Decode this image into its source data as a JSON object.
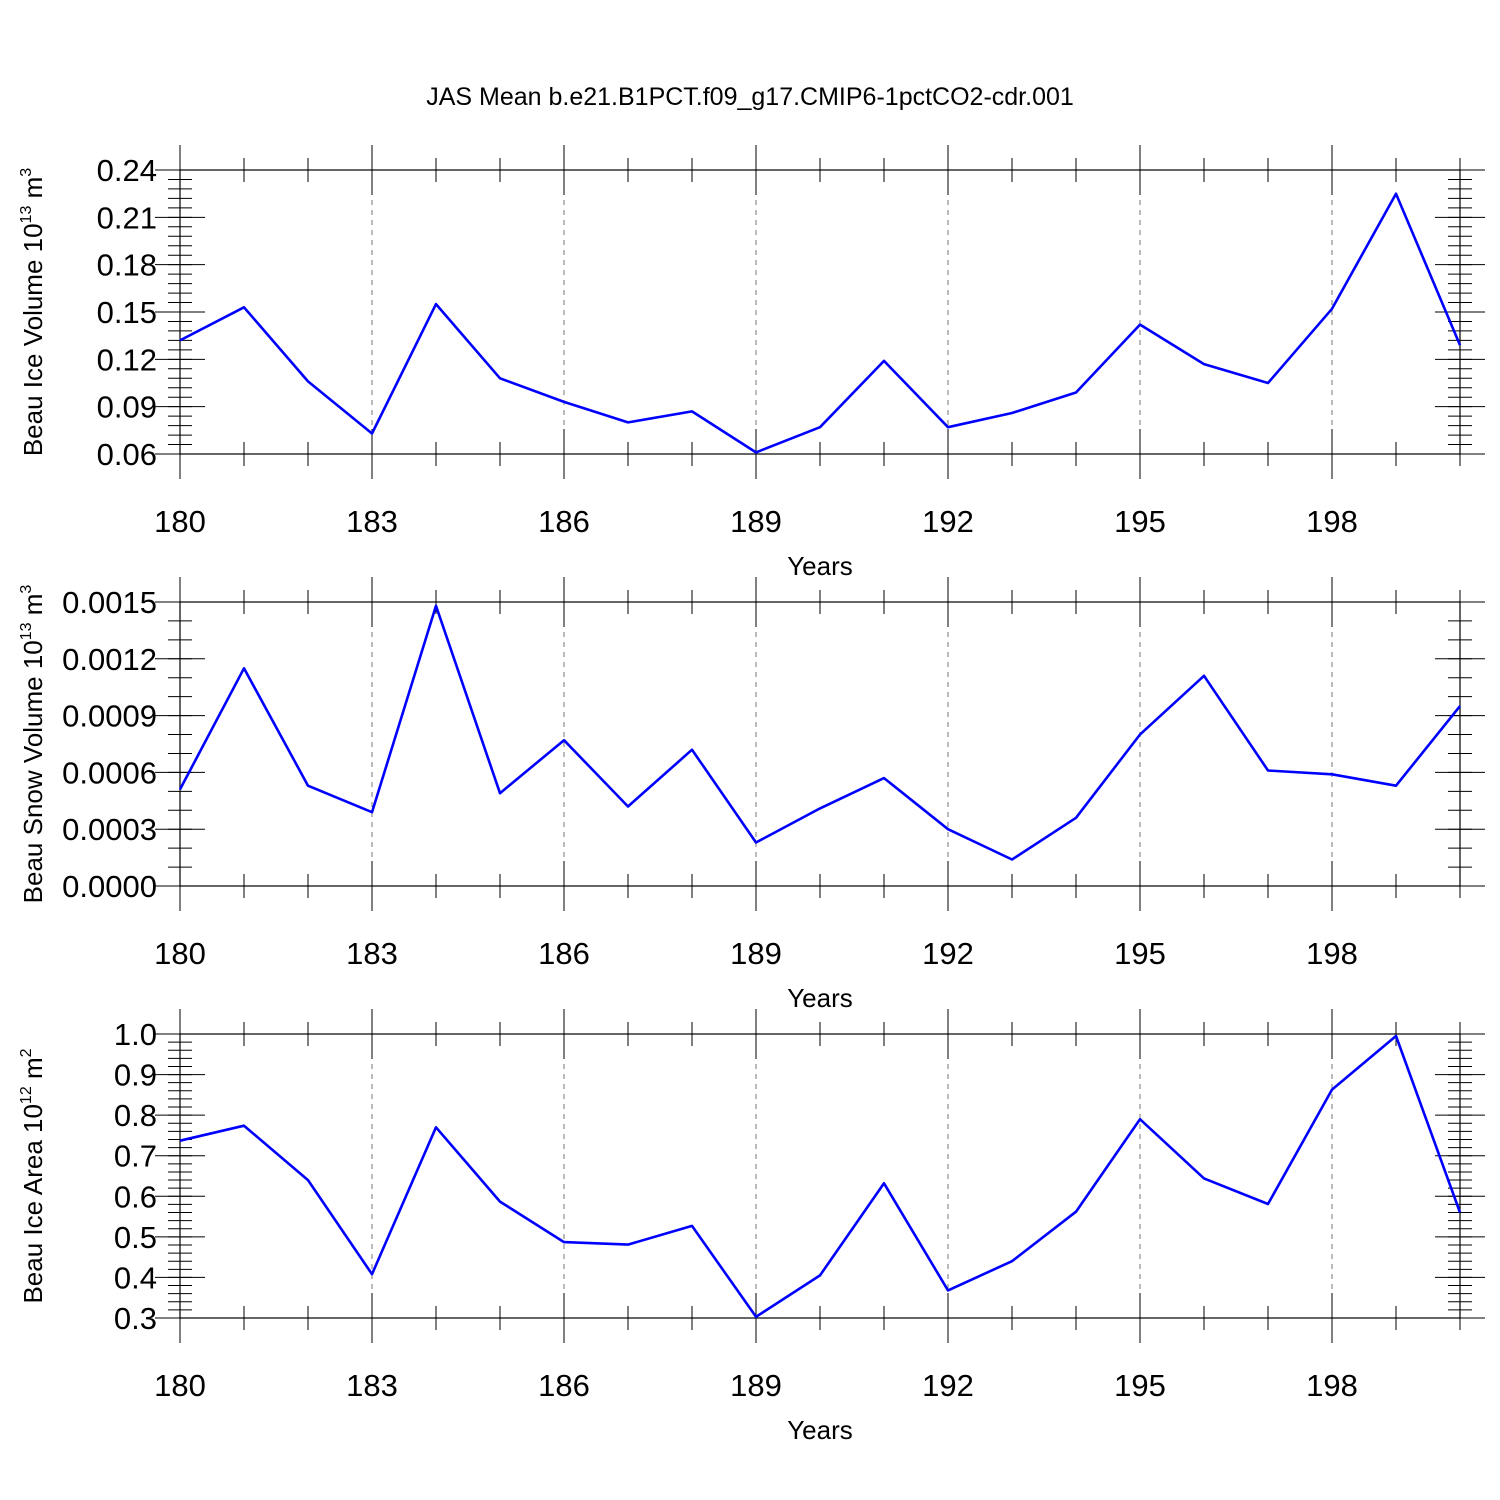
{
  "chart_data": [
    {
      "type": "line",
      "title": "JAS Mean b.e21.B1PCT.f09_g17.CMIP6-1pctCO2-cdr.001",
      "xlabel": "Years",
      "ylabel": {
        "base": "Beau Ice Volume 10",
        "exp": "13",
        "unit": " m",
        "unit_exp": "3"
      },
      "x": [
        180,
        181,
        182,
        183,
        184,
        185,
        186,
        187,
        188,
        189,
        190,
        191,
        192,
        193,
        194,
        195,
        196,
        197,
        198,
        199,
        200
      ],
      "xlim": [
        180,
        200
      ],
      "xticks": [
        180,
        183,
        186,
        189,
        192,
        195,
        198
      ],
      "xtick_labels": [
        "180",
        "183",
        "186",
        "189",
        "192",
        "195",
        "198"
      ],
      "ylim": [
        0.06,
        0.24
      ],
      "yticks": [
        0.06,
        0.09,
        0.12,
        0.15,
        0.18,
        0.21,
        0.24
      ],
      "ytick_labels": [
        "0.06",
        "0.09",
        "0.12",
        "0.15",
        "0.18",
        "0.21",
        "0.24"
      ],
      "yminor_step": 0.006,
      "series": [
        {
          "name": "Beau Ice Volume",
          "color": "#0000ff",
          "values": [
            0.132,
            0.153,
            0.106,
            0.073,
            0.155,
            0.108,
            0.093,
            0.08,
            0.087,
            0.061,
            0.077,
            0.119,
            0.077,
            0.086,
            0.099,
            0.142,
            0.117,
            0.105,
            0.152,
            0.225,
            0.129
          ]
        }
      ]
    },
    {
      "type": "line",
      "xlabel": "Years",
      "ylabel": {
        "base": "Beau Snow Volume 10",
        "exp": "13",
        "unit": " m",
        "unit_exp": "3"
      },
      "x": [
        180,
        181,
        182,
        183,
        184,
        185,
        186,
        187,
        188,
        189,
        190,
        191,
        192,
        193,
        194,
        195,
        196,
        197,
        198,
        199,
        200
      ],
      "xlim": [
        180,
        200
      ],
      "xticks": [
        180,
        183,
        186,
        189,
        192,
        195,
        198
      ],
      "xtick_labels": [
        "180",
        "183",
        "186",
        "189",
        "192",
        "195",
        "198"
      ],
      "ylim": [
        0.0,
        0.0015
      ],
      "yticks": [
        0.0,
        0.0003,
        0.0006,
        0.0009,
        0.0012,
        0.0015
      ],
      "ytick_labels": [
        "0.0000",
        "0.0003",
        "0.0006",
        "0.0009",
        "0.0012",
        "0.0015"
      ],
      "yminor_step": 0.0001,
      "series": [
        {
          "name": "Beau Snow Volume",
          "color": "#0000ff",
          "values": [
            0.00051,
            0.00115,
            0.00053,
            0.00039,
            0.00148,
            0.00049,
            0.00077,
            0.00042,
            0.00072,
            0.00023,
            0.00041,
            0.00057,
            0.0003,
            0.00014,
            0.00036,
            0.0008,
            0.00111,
            0.00061,
            0.00059,
            0.00053,
            0.00095
          ]
        }
      ]
    },
    {
      "type": "line",
      "xlabel": "Years",
      "ylabel": {
        "base": "Beau Ice Area 10",
        "exp": "12",
        "unit": " m",
        "unit_exp": "2"
      },
      "x": [
        180,
        181,
        182,
        183,
        184,
        185,
        186,
        187,
        188,
        189,
        190,
        191,
        192,
        193,
        194,
        195,
        196,
        197,
        198,
        199,
        200
      ],
      "xlim": [
        180,
        200
      ],
      "xticks": [
        180,
        183,
        186,
        189,
        192,
        195,
        198
      ],
      "xtick_labels": [
        "180",
        "183",
        "186",
        "189",
        "192",
        "195",
        "198"
      ],
      "ylim": [
        0.3,
        1.0
      ],
      "yticks": [
        0.3,
        0.4,
        0.5,
        0.6,
        0.7,
        0.8,
        0.9,
        1.0
      ],
      "ytick_labels": [
        "0.3",
        "0.4",
        "0.5",
        "0.6",
        "0.7",
        "0.8",
        "0.9",
        "1.0"
      ],
      "yminor_step": 0.02,
      "series": [
        {
          "name": "Beau Ice Area",
          "color": "#0000ff",
          "values": [
            0.737,
            0.774,
            0.64,
            0.408,
            0.77,
            0.587,
            0.487,
            0.481,
            0.527,
            0.303,
            0.405,
            0.632,
            0.368,
            0.44,
            0.562,
            0.79,
            0.644,
            0.581,
            0.863,
            0.995,
            0.56
          ]
        }
      ]
    }
  ]
}
